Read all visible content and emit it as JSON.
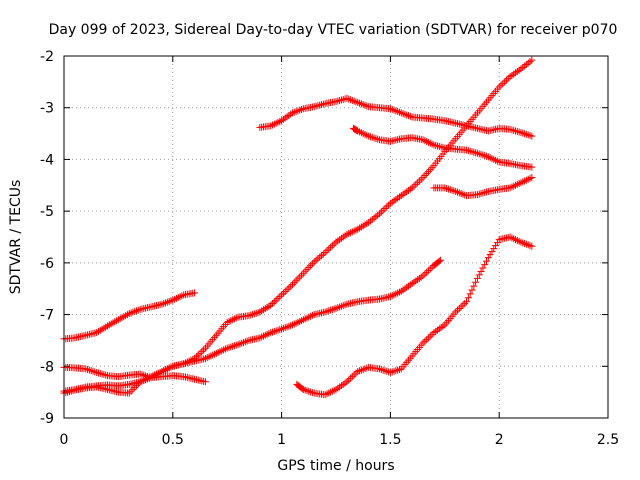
{
  "chart_data": {
    "type": "scatter",
    "title": "Day 099 of 2023, Sidereal Day-to-day VTEC variation (SDTVAR) for receiver p070",
    "xlabel": "GPS time / hours",
    "ylabel": "SDTVAR / TECUs",
    "xlim": [
      0,
      2.5
    ],
    "ylim": [
      -9,
      -2
    ],
    "xticks": [
      0,
      0.5,
      1,
      1.5,
      2,
      2.5
    ],
    "xtick_labels": [
      "0",
      "0.5",
      "1",
      "1.5",
      "2",
      "2.5"
    ],
    "yticks": [
      -9,
      -8,
      -7,
      -6,
      -5,
      -4,
      -3,
      -2
    ],
    "ytick_labels": [
      "-9",
      "-8",
      "-7",
      "-6",
      "-5",
      "-4",
      "-3",
      "-2"
    ],
    "grid": true,
    "marker": "+",
    "color": "#ff0000",
    "series": [
      {
        "name": "s1",
        "x": [
          0.0,
          0.05,
          0.1,
          0.15,
          0.2,
          0.25,
          0.3,
          0.35,
          0.4,
          0.45,
          0.5,
          0.55,
          0.6
        ],
        "y": [
          -7.47,
          -7.45,
          -7.4,
          -7.35,
          -7.22,
          -7.1,
          -6.98,
          -6.9,
          -6.85,
          -6.8,
          -6.72,
          -6.62,
          -6.58
        ]
      },
      {
        "name": "s2",
        "x": [
          0.0,
          0.05,
          0.1,
          0.15,
          0.2,
          0.25,
          0.3,
          0.35,
          0.4,
          0.45,
          0.5,
          0.55,
          0.6,
          0.65
        ],
        "y": [
          -8.02,
          -8.03,
          -8.05,
          -8.12,
          -8.18,
          -8.2,
          -8.17,
          -8.15,
          -8.22,
          -8.2,
          -8.18,
          -8.2,
          -8.25,
          -8.3
        ]
      },
      {
        "name": "s3",
        "x": [
          0.0,
          0.05,
          0.1,
          0.15,
          0.2,
          0.25,
          0.3,
          0.35,
          0.4,
          0.45,
          0.5,
          0.55,
          0.6,
          0.65,
          0.7,
          0.75,
          0.8,
          0.85,
          0.9,
          0.95,
          1.0,
          1.05,
          1.1,
          1.15,
          1.2,
          1.25,
          1.3,
          1.35,
          1.4,
          1.45,
          1.5,
          1.55,
          1.6,
          1.65,
          1.7,
          1.75,
          1.8,
          1.85,
          1.9,
          1.95,
          2.0,
          2.05,
          2.1,
          2.15
        ],
        "y": [
          -8.52,
          -8.46,
          -8.42,
          -8.4,
          -8.45,
          -8.5,
          -8.52,
          -8.3,
          -8.2,
          -8.1,
          -8.0,
          -7.95,
          -7.85,
          -7.65,
          -7.4,
          -7.15,
          -7.05,
          -7.02,
          -6.95,
          -6.82,
          -6.62,
          -6.42,
          -6.2,
          -5.98,
          -5.8,
          -5.6,
          -5.45,
          -5.35,
          -5.22,
          -5.05,
          -4.85,
          -4.7,
          -4.55,
          -4.35,
          -4.12,
          -3.85,
          -3.6,
          -3.35,
          -3.1,
          -2.85,
          -2.6,
          -2.4,
          -2.25,
          -2.08
        ]
      },
      {
        "name": "s4",
        "x": [
          0.0,
          0.05,
          0.1,
          0.15,
          0.2,
          0.25,
          0.3,
          0.35,
          0.4,
          0.45,
          0.5,
          0.55,
          0.6,
          0.65,
          0.7,
          0.75,
          0.8,
          0.85,
          0.9,
          0.95,
          1.0,
          1.05,
          1.1,
          1.15,
          1.2,
          1.25,
          1.3,
          1.35,
          1.4,
          1.45,
          1.5,
          1.55,
          1.6,
          1.65,
          1.7,
          1.73
        ],
        "y": [
          -8.48,
          -8.45,
          -8.4,
          -8.38,
          -8.36,
          -8.38,
          -8.35,
          -8.3,
          -8.22,
          -8.1,
          -8.0,
          -7.95,
          -7.9,
          -7.85,
          -7.75,
          -7.65,
          -7.58,
          -7.5,
          -7.45,
          -7.35,
          -7.28,
          -7.2,
          -7.1,
          -7.0,
          -6.95,
          -6.88,
          -6.8,
          -6.75,
          -6.72,
          -6.7,
          -6.65,
          -6.55,
          -6.4,
          -6.25,
          -6.05,
          -5.95
        ]
      },
      {
        "name": "s5",
        "x": [
          0.9,
          0.95,
          1.0,
          1.05,
          1.1,
          1.15,
          1.2,
          1.25,
          1.3,
          1.35,
          1.4,
          1.45,
          1.5,
          1.55,
          1.6,
          1.65,
          1.7,
          1.75,
          1.8,
          1.85,
          1.9,
          1.95,
          2.0,
          2.05,
          2.1,
          2.15
        ],
        "y": [
          -3.38,
          -3.35,
          -3.25,
          -3.1,
          -3.02,
          -2.98,
          -2.92,
          -2.88,
          -2.82,
          -2.9,
          -2.98,
          -3.0,
          -3.02,
          -3.1,
          -3.18,
          -3.2,
          -3.22,
          -3.25,
          -3.3,
          -3.35,
          -3.4,
          -3.45,
          -3.4,
          -3.42,
          -3.48,
          -3.55
        ]
      },
      {
        "name": "s6",
        "x": [
          1.33,
          1.35,
          1.4,
          1.45,
          1.5,
          1.55,
          1.6,
          1.65,
          1.7,
          1.75,
          1.8,
          1.85,
          1.9,
          1.95,
          2.0,
          2.05,
          2.1,
          2.15
        ],
        "y": [
          -3.4,
          -3.45,
          -3.55,
          -3.62,
          -3.65,
          -3.6,
          -3.58,
          -3.62,
          -3.72,
          -3.78,
          -3.8,
          -3.82,
          -3.88,
          -3.95,
          -4.05,
          -4.08,
          -4.12,
          -4.15
        ]
      },
      {
        "name": "s7",
        "x": [
          1.7,
          1.75,
          1.8,
          1.85,
          1.9,
          1.95,
          2.0,
          2.05,
          2.1,
          2.15
        ],
        "y": [
          -4.55,
          -4.55,
          -4.62,
          -4.7,
          -4.68,
          -4.62,
          -4.58,
          -4.55,
          -4.45,
          -4.35
        ]
      },
      {
        "name": "s8",
        "x": [
          1.07,
          1.1,
          1.15,
          1.2,
          1.25,
          1.3,
          1.35,
          1.4,
          1.45,
          1.5,
          1.55,
          1.6,
          1.65,
          1.7,
          1.75,
          1.8,
          1.85,
          1.9,
          1.95,
          2.0,
          2.05,
          2.1,
          2.15
        ],
        "y": [
          -8.35,
          -8.45,
          -8.52,
          -8.55,
          -8.45,
          -8.3,
          -8.1,
          -8.02,
          -8.05,
          -8.12,
          -8.05,
          -7.8,
          -7.55,
          -7.35,
          -7.2,
          -6.95,
          -6.75,
          -6.3,
          -5.9,
          -5.55,
          -5.5,
          -5.6,
          -5.68
        ]
      }
    ]
  }
}
